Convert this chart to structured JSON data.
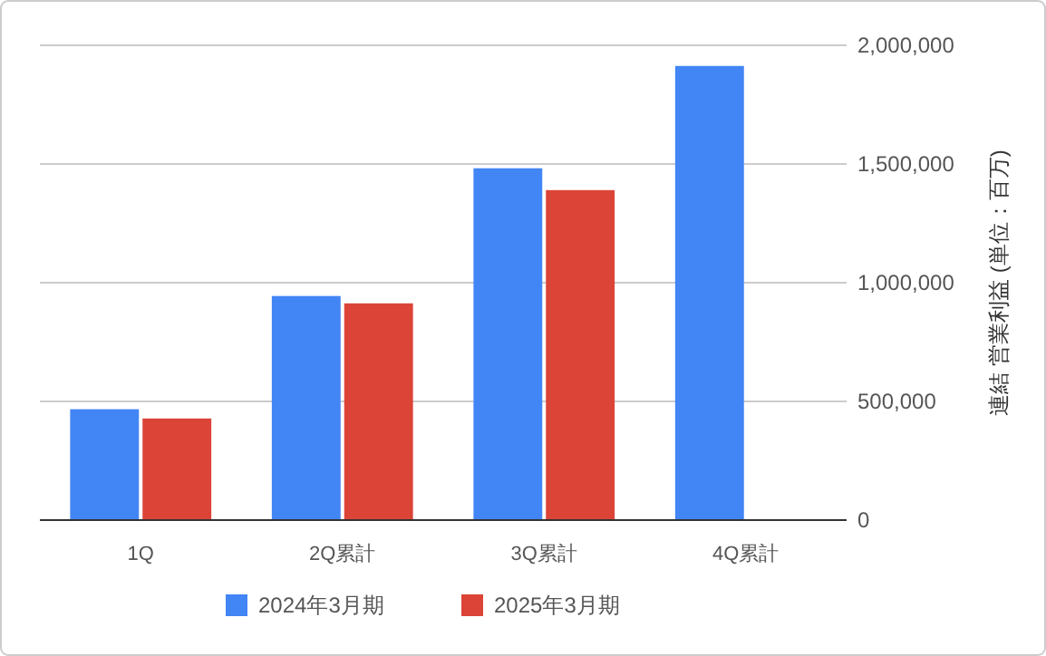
{
  "chart_data": {
    "type": "bar",
    "categories": [
      "1Q",
      "2Q累計",
      "3Q累計",
      "4Q累計"
    ],
    "series": [
      {
        "name": "2024年3月期",
        "color": "#4285f4",
        "values": [
          467000,
          944000,
          1482000,
          1913000
        ]
      },
      {
        "name": "2025年3月期",
        "color": "#db4437",
        "values": [
          428000,
          913000,
          1390000,
          null
        ]
      }
    ],
    "ylabel": "連結 営業利益 (単位：百万)",
    "ylim": [
      0,
      2000000
    ],
    "yticks": [
      {
        "value": 0,
        "label": "0"
      },
      {
        "value": 500000,
        "label": "500,000"
      },
      {
        "value": 1000000,
        "label": "1,000,000"
      },
      {
        "value": 1500000,
        "label": "1,500,000"
      },
      {
        "value": 2000000,
        "label": "2,000,000"
      }
    ],
    "grid": "y",
    "legend": "bottom"
  }
}
